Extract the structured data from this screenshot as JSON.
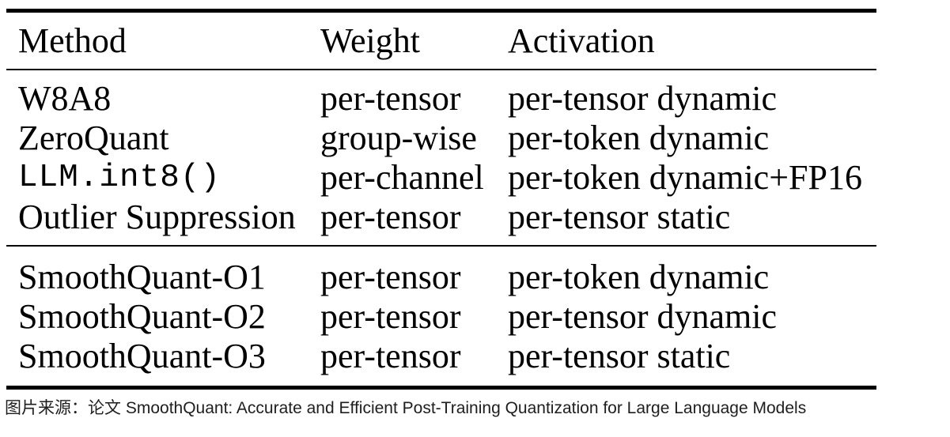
{
  "table": {
    "headers": {
      "method": "Method",
      "weight": "Weight",
      "activation": "Activation"
    },
    "baseline_rows": [
      {
        "method": "W8A8",
        "weight": "per-tensor",
        "activation": "per-tensor dynamic"
      },
      {
        "method": "ZeroQuant",
        "weight": "group-wise",
        "activation": "per-token dynamic"
      },
      {
        "method": "LLM.int8()",
        "weight": "per-channel",
        "activation": "per-token dynamic+FP16"
      },
      {
        "method": "Outlier Suppression",
        "weight": "per-tensor",
        "activation": "per-tensor static"
      }
    ],
    "smoothquant_rows": [
      {
        "method": "SmoothQuant-O1",
        "weight": "per-tensor",
        "activation": "per-token dynamic"
      },
      {
        "method": "SmoothQuant-O2",
        "weight": "per-tensor",
        "activation": "per-tensor dynamic"
      },
      {
        "method": "SmoothQuant-O3",
        "weight": "per-tensor",
        "activation": "per-tensor static"
      }
    ]
  },
  "caption": "图片来源：论文 SmoothQuant: Accurate and Efficient Post-Training Quantization for Large Language Models",
  "colors": {
    "text": "#000000",
    "caption_text": "#1e1e1e",
    "background": "#ffffff",
    "rule": "#000000"
  }
}
